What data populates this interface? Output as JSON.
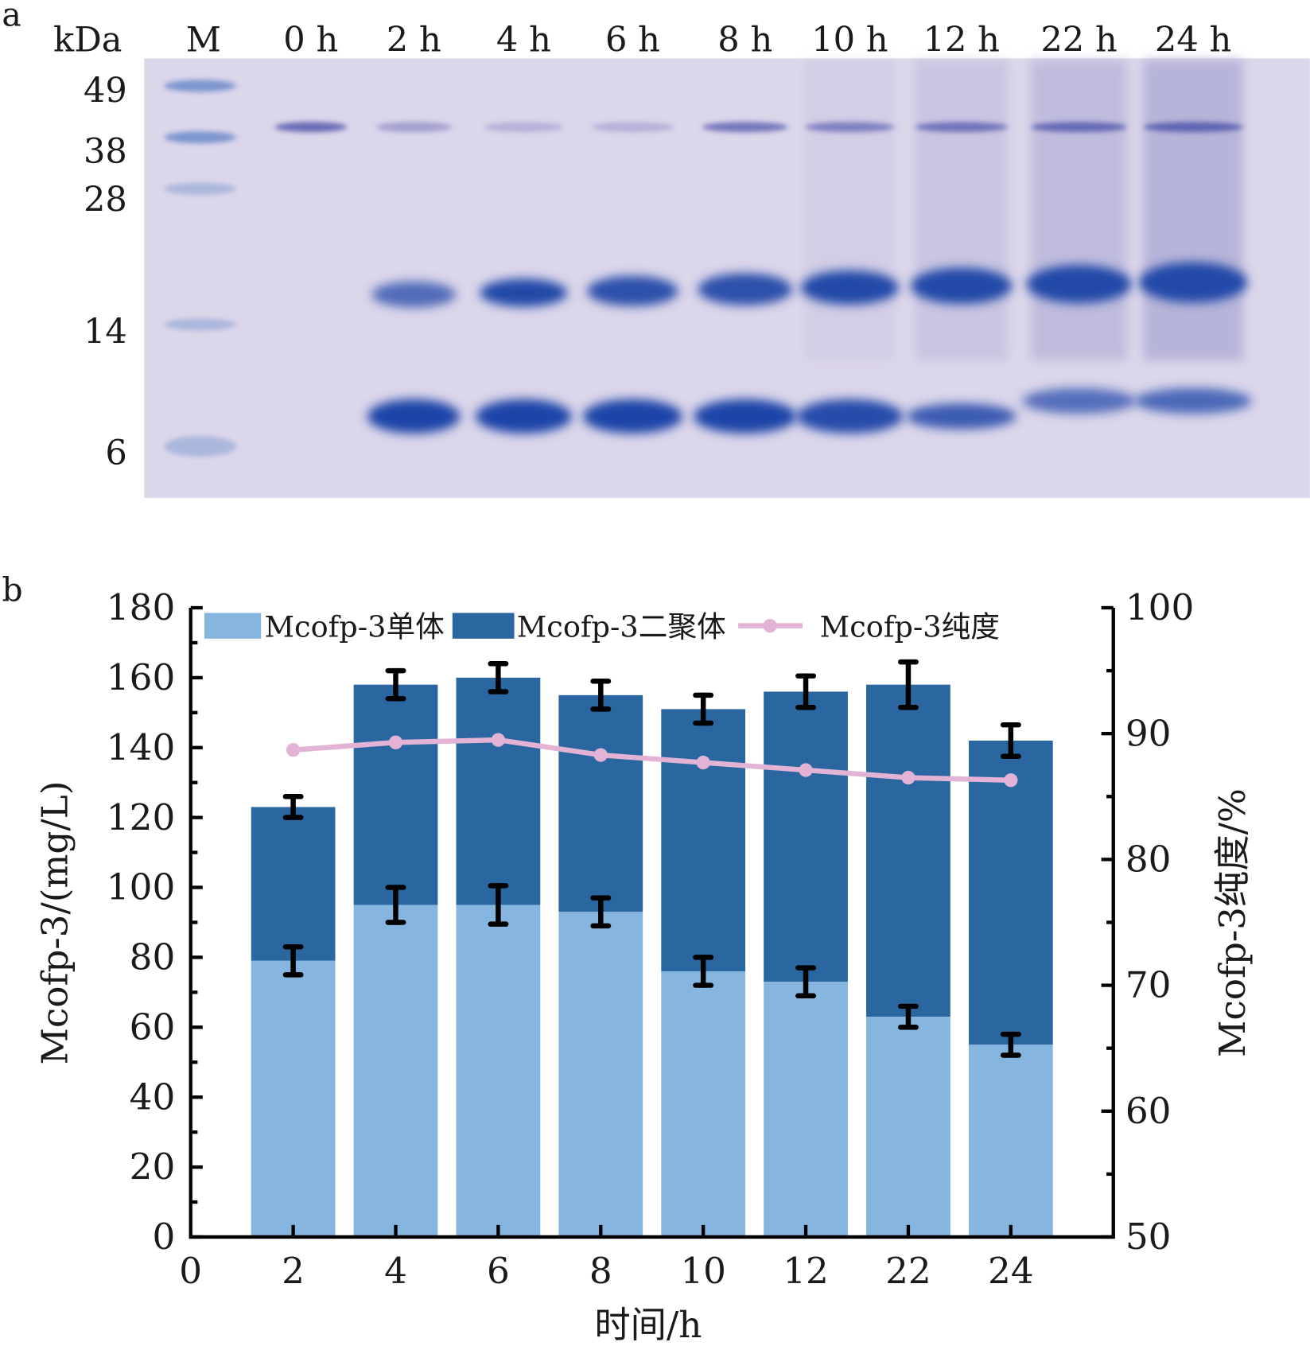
{
  "panel_a": {
    "label": "a",
    "unit_label": "kDa",
    "marker_lane_label": "M",
    "lane_labels": [
      "0 h",
      "2 h",
      "4 h",
      "6 h",
      "8 h",
      "10 h",
      "12 h",
      "22 h",
      "24 h"
    ],
    "marker_sizes": [
      "49",
      "38",
      "28",
      "14",
      "6"
    ]
  },
  "chart_data": {
    "type": "bar",
    "panel_label": "b",
    "stacked": true,
    "categories": [
      "2",
      "4",
      "6",
      "8",
      "10",
      "12",
      "22",
      "24"
    ],
    "x_zero_label": "0",
    "xlabel": "时间/h",
    "ylabel": "Mcofp-3/(mg/L)",
    "ylabel_right": "Mcofp-3纯度/%",
    "ylim": [
      0,
      180
    ],
    "yticks": [
      "0",
      "20",
      "40",
      "60",
      "80",
      "100",
      "120",
      "140",
      "160",
      "180"
    ],
    "ylim_right": [
      50,
      100
    ],
    "yticks_right": [
      "50",
      "60",
      "70",
      "80",
      "90",
      "100"
    ],
    "legend_position": "top",
    "series": [
      {
        "name": "Mcofp-3单体",
        "kind": "bar",
        "color": "#86b5df",
        "values": [
          79,
          95,
          95,
          93,
          76,
          73,
          63,
          55
        ],
        "errors": [
          4,
          5,
          5.5,
          4,
          4,
          4,
          3,
          3
        ]
      },
      {
        "name": "Mcofp-3二聚体",
        "kind": "bar",
        "color": "#2a67a1",
        "values": [
          44,
          63,
          65,
          62,
          75,
          83,
          95,
          87
        ],
        "total_errors": [
          3,
          4,
          4,
          4,
          4,
          4.5,
          6.5,
          4.5
        ]
      },
      {
        "name": "Mcofp-3纯度",
        "kind": "line",
        "axis": "right",
        "color": "#e2b3d4",
        "values": [
          88.7,
          89.3,
          89.5,
          88.3,
          87.7,
          87.1,
          86.5,
          86.3
        ]
      }
    ]
  }
}
